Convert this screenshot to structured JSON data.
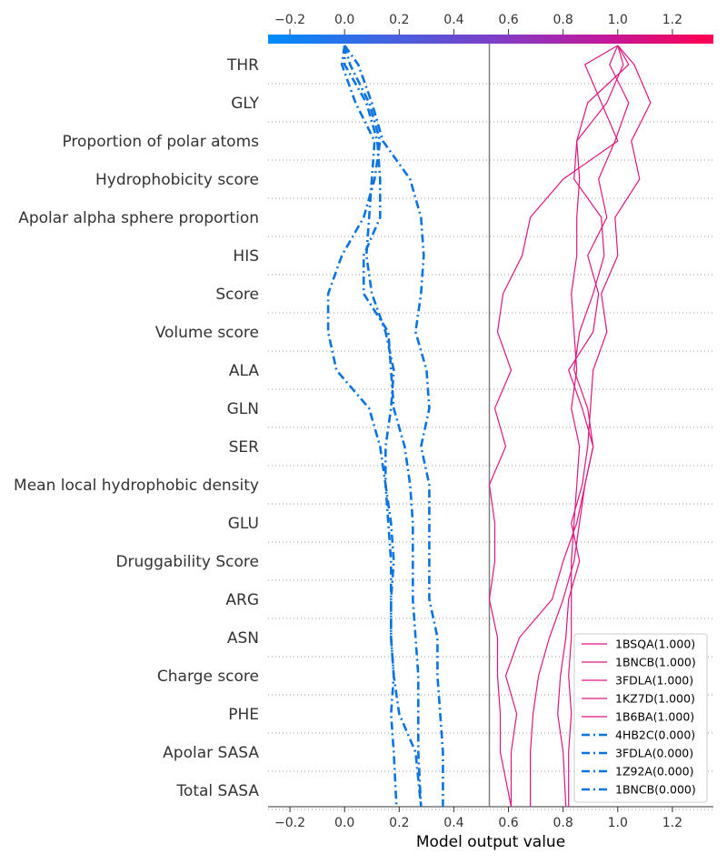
{
  "chart_data": {
    "type": "line",
    "subtype": "decision_plot",
    "xlabel": "Model output value",
    "xlim": [
      -0.28,
      1.35
    ],
    "xticks": [
      -0.2,
      0.0,
      0.2,
      0.4,
      0.6,
      0.8,
      1.0,
      1.2
    ],
    "xtick_labels": [
      "−0.2",
      "0.0",
      "0.2",
      "0.4",
      "0.6",
      "0.8",
      "1.0",
      "1.2"
    ],
    "base_value": 0.53,
    "colorbar": {
      "min": -0.2,
      "max": 1.35,
      "low_color": "#008bfb",
      "high_color": "#ff0051"
    },
    "features": [
      "THR",
      "GLY",
      "Proportion of polar atoms",
      "Hydrophobicity score",
      "Apolar alpha sphere proportion",
      "HIS",
      "Score",
      "Volume score",
      "ALA",
      "GLN",
      "SER",
      "Mean local hydrophobic density",
      "GLU",
      "Druggability Score",
      "ARG",
      "ASN",
      "Charge score",
      "PHE",
      "Apolar SASA",
      "Total SASA"
    ],
    "legend_position": "lower-right",
    "series": [
      {
        "name": "1BSQA(1.000)",
        "color": "#e0157f",
        "style": "solid",
        "values": [
          1.0,
          0.88,
          0.94,
          1.0,
          0.8,
          0.68,
          0.65,
          0.58,
          0.56,
          0.61,
          0.55,
          0.59,
          0.53,
          0.55,
          0.55,
          0.53,
          0.56,
          0.56,
          0.57,
          0.57,
          0.61
        ]
      },
      {
        "name": "1BNCB(1.000)",
        "color": "#e0157f",
        "style": "solid",
        "values": [
          1.0,
          1.02,
          0.96,
          0.85,
          0.84,
          0.94,
          0.95,
          0.91,
          0.86,
          0.84,
          0.89,
          0.91,
          0.88,
          0.85,
          0.8,
          0.76,
          0.64,
          0.59,
          0.63,
          0.61,
          0.61
        ]
      },
      {
        "name": "3FDLA(1.000)",
        "color": "#e0157f",
        "style": "solid",
        "values": [
          1.0,
          0.97,
          1.04,
          0.99,
          0.93,
          0.96,
          0.89,
          0.93,
          0.91,
          0.82,
          0.87,
          0.91,
          0.88,
          0.86,
          0.84,
          0.8,
          0.75,
          0.71,
          0.69,
          0.68,
          0.68
        ]
      },
      {
        "name": "1KZ7D(1.000)",
        "color": "#e0157f",
        "style": "solid",
        "values": [
          1.0,
          1.06,
          1.12,
          1.05,
          1.08,
          0.99,
          1.0,
          0.94,
          0.96,
          0.91,
          0.9,
          0.89,
          0.87,
          0.83,
          0.86,
          0.82,
          0.81,
          0.79,
          0.78,
          0.8,
          0.81
        ]
      },
      {
        "name": "1B6BA(1.000)",
        "color": "#e0157f",
        "style": "solid",
        "values": [
          1.0,
          1.04,
          0.89,
          0.85,
          0.86,
          0.85,
          0.85,
          0.83,
          0.84,
          0.85,
          0.83,
          0.86,
          0.85,
          0.84,
          0.83,
          0.83,
          0.83,
          0.82,
          0.83,
          0.82,
          0.82
        ]
      },
      {
        "name": "4HB2C(0.000)",
        "color": "#0a73e0",
        "style": "dashdot",
        "values": [
          0.0,
          0.02,
          0.09,
          0.13,
          0.11,
          0.07,
          -0.01,
          -0.06,
          -0.06,
          -0.03,
          0.09,
          0.13,
          0.15,
          0.16,
          0.17,
          0.17,
          0.17,
          0.18,
          0.17,
          0.18,
          0.19
        ]
      },
      {
        "name": "3FDLA(0.000)",
        "color": "#0a73e0",
        "style": "dashdot",
        "values": [
          0.0,
          0.05,
          0.1,
          0.14,
          0.24,
          0.28,
          0.29,
          0.28,
          0.26,
          0.3,
          0.31,
          0.28,
          0.31,
          0.31,
          0.31,
          0.31,
          0.34,
          0.34,
          0.35,
          0.36,
          0.36
        ]
      },
      {
        "name": "1Z92A(0.000)",
        "color": "#0a73e0",
        "style": "dashdot",
        "values": [
          0.0,
          0.0,
          0.08,
          0.12,
          0.13,
          0.13,
          0.07,
          0.07,
          0.16,
          0.17,
          0.18,
          0.22,
          0.24,
          0.25,
          0.25,
          0.25,
          0.26,
          0.27,
          0.27,
          0.27,
          0.28
        ]
      },
      {
        "name": "1BNCB(0.000)",
        "color": "#0a73e0",
        "style": "dashdot",
        "values": [
          0.0,
          -0.01,
          0.04,
          0.11,
          0.1,
          0.09,
          0.08,
          0.1,
          0.15,
          0.18,
          0.17,
          0.15,
          0.15,
          0.17,
          0.18,
          0.17,
          0.17,
          0.18,
          0.2,
          0.26,
          0.28
        ]
      }
    ]
  }
}
